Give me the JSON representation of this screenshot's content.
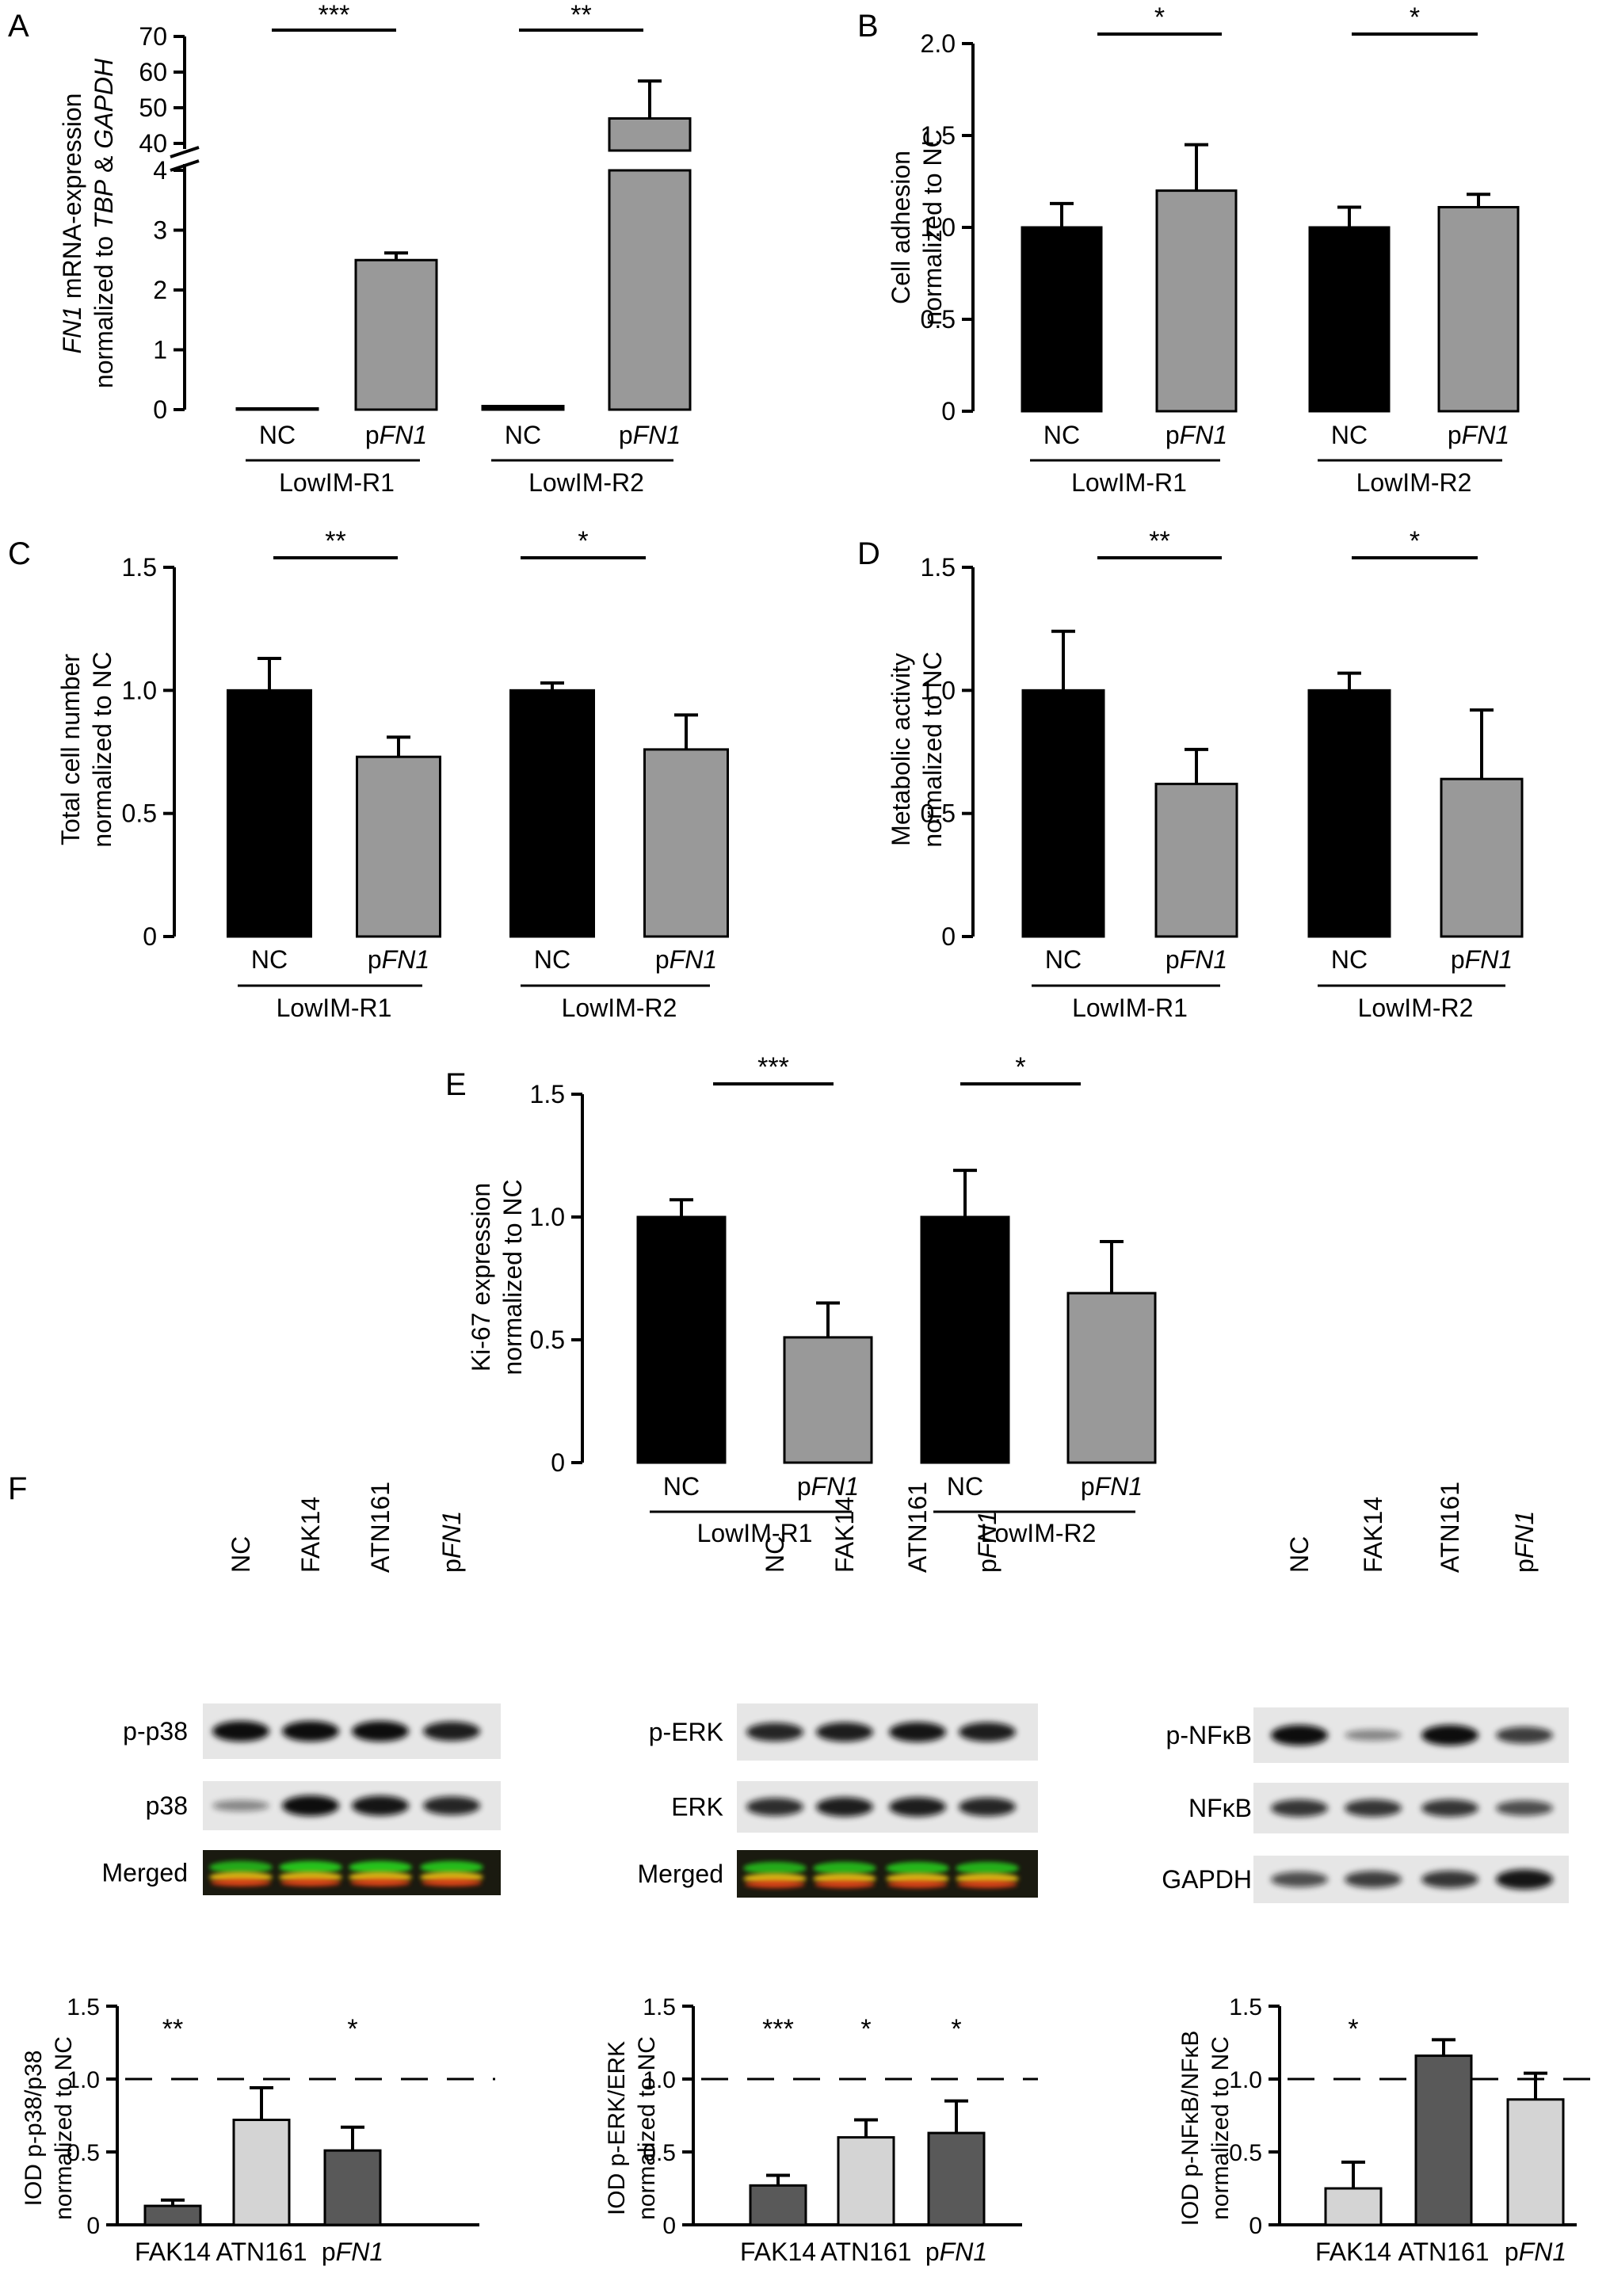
{
  "panels": {
    "A": {
      "letter": "A",
      "ylabel_parts": [
        {
          "t": "FN1",
          "i": true
        },
        {
          "t": " mRNA-expression",
          "i": false
        }
      ],
      "ylabel2_parts": [
        {
          "t": "normalized to ",
          "i": false
        },
        {
          "t": "TBP",
          "i": true
        },
        {
          "t": " & ",
          "i": false
        },
        {
          "t": "GAPDH",
          "i": true
        }
      ],
      "upper_ticks": [
        "40",
        "50",
        "60",
        "70"
      ],
      "lower_ticks": [
        "0",
        "1",
        "2",
        "3",
        "4"
      ],
      "cats": [
        {
          "t": "NC"
        },
        {
          "t": "p",
          "it": "FN1"
        },
        {
          "t": "NC"
        },
        {
          "t": "p",
          "it": "FN1"
        }
      ],
      "groups": [
        "LowIM-R1",
        "LowIM-R2"
      ],
      "sig": [
        "***",
        "**"
      ]
    },
    "B": {
      "letter": "B",
      "ylabel": "Cell adhesion",
      "ylabel2": "normalized to NC",
      "ticks": [
        "0",
        "0.5",
        "1.0",
        "1.5",
        "2.0"
      ],
      "cats": [
        {
          "t": "NC"
        },
        {
          "t": "p",
          "it": "FN1"
        },
        {
          "t": "NC"
        },
        {
          "t": "p",
          "it": "FN1"
        }
      ],
      "groups": [
        "LowIM-R1",
        "LowIM-R2"
      ],
      "sig": [
        "*",
        "*"
      ]
    },
    "C": {
      "letter": "C",
      "ylabel": "Total cell number",
      "ylabel2": "normalized to NC",
      "ticks": [
        "0",
        "0.5",
        "1.0",
        "1.5"
      ],
      "cats": [
        {
          "t": "NC"
        },
        {
          "t": "p",
          "it": "FN1"
        },
        {
          "t": "NC"
        },
        {
          "t": "p",
          "it": "FN1"
        }
      ],
      "groups": [
        "LowIM-R1",
        "LowIM-R2"
      ],
      "sig": [
        "**",
        "*"
      ]
    },
    "D": {
      "letter": "D",
      "ylabel": "Metabolic activity",
      "ylabel2": "normalized to NC",
      "ticks": [
        "0",
        "0.5",
        "1.0",
        "1.5"
      ],
      "cats": [
        {
          "t": "NC"
        },
        {
          "t": "p",
          "it": "FN1"
        },
        {
          "t": "NC"
        },
        {
          "t": "p",
          "it": "FN1"
        }
      ],
      "groups": [
        "LowIM-R1",
        "LowIM-R2"
      ],
      "sig": [
        "**",
        "*"
      ]
    },
    "E": {
      "letter": "E",
      "ylabel": "Ki-67 expression",
      "ylabel2": "normalized to NC",
      "ticks": [
        "0",
        "0.5",
        "1.0",
        "1.5"
      ],
      "cats": [
        {
          "t": "NC"
        },
        {
          "t": "p",
          "it": "FN1"
        },
        {
          "t": "NC"
        },
        {
          "t": "p",
          "it": "FN1"
        }
      ],
      "groups": [
        "LowIM-R1",
        "LowIM-R2"
      ],
      "sig": [
        "***",
        "*"
      ]
    },
    "F": {
      "letter": "F",
      "blots": [
        {
          "lanes": [
            {
              "t": "NC"
            },
            {
              "t": "FAK14"
            },
            {
              "t": "ATN161"
            },
            {
              "t": "p",
              "it": "FN1"
            }
          ],
          "rows": [
            "p-p38",
            "p38",
            "Merged"
          ]
        },
        {
          "lanes": [
            {
              "t": "NC"
            },
            {
              "t": "FAK14"
            },
            {
              "t": "ATN161"
            },
            {
              "t": "p",
              "it": "FN1"
            }
          ],
          "rows": [
            "p-ERK",
            "ERK",
            "Merged"
          ]
        },
        {
          "lanes": [
            {
              "t": "NC"
            },
            {
              "t": "FAK14"
            },
            {
              "t": "ATN161"
            },
            {
              "t": "p",
              "it": "FN1"
            }
          ],
          "rows": [
            "p-NFκB",
            "NFκB",
            "GAPDH"
          ]
        }
      ],
      "bar_charts": [
        {
          "ylabel": "IOD p-p38/p38",
          "ylabel2": "normalized to NC",
          "ticks": [
            "0",
            "0.5",
            "1.0",
            "1.5"
          ],
          "cats": [
            {
              "t": "FAK14"
            },
            {
              "t": "ATN161"
            },
            {
              "t": "p",
              "it": "FN1"
            }
          ],
          "sig": [
            "**",
            "",
            "*"
          ]
        },
        {
          "ylabel": "IOD p-ERK/ERK",
          "ylabel2": "normalized to NC",
          "ticks": [
            "0",
            "0.5",
            "1.0",
            "1.5"
          ],
          "cats": [
            {
              "t": "FAK14"
            },
            {
              "t": "ATN161"
            },
            {
              "t": "p",
              "it": "FN1"
            }
          ],
          "sig": [
            "***",
            "*",
            "*"
          ]
        },
        {
          "ylabel": "IOD p-NFκB/NFκB",
          "ylabel2": "normalized to NC",
          "ticks": [
            "0",
            "0.5",
            "1.0",
            "1.5"
          ],
          "cats": [
            {
              "t": "FAK14"
            },
            {
              "t": "ATN161"
            },
            {
              "t": "p",
              "it": "FN1"
            }
          ],
          "sig": [
            "*",
            "",
            ""
          ]
        }
      ]
    }
  },
  "colors": {
    "nc": "#000000",
    "pfn1": "#999999",
    "fak14": "#595959",
    "atn161": "#d4d4d4",
    "pfn1_f": "#7f7f7f"
  },
  "chart_data": [
    {
      "panel": "A",
      "type": "bar",
      "categories": [
        "NC",
        "pFN1",
        "NC",
        "pFN1"
      ],
      "groups": [
        "LowIM-R1",
        "LowIM-R2"
      ],
      "values": [
        0.02,
        2.5,
        0.06,
        47
      ],
      "errors": [
        0,
        0.12,
        0,
        10.5
      ],
      "axis_break": [
        4,
        40
      ],
      "ylim": [
        0,
        70
      ],
      "significance": [
        "***",
        "**"
      ]
    },
    {
      "panel": "B",
      "type": "bar",
      "categories": [
        "NC",
        "pFN1",
        "NC",
        "pFN1"
      ],
      "groups": [
        "LowIM-R1",
        "LowIM-R2"
      ],
      "values": [
        1.0,
        1.2,
        1.0,
        1.11
      ],
      "errors": [
        0.13,
        0.25,
        0.11,
        0.07
      ],
      "ylim": [
        0,
        2.0
      ],
      "significance": [
        "*",
        "*"
      ]
    },
    {
      "panel": "C",
      "type": "bar",
      "categories": [
        "NC",
        "pFN1",
        "NC",
        "pFN1"
      ],
      "groups": [
        "LowIM-R1",
        "LowIM-R2"
      ],
      "values": [
        1.0,
        0.73,
        1.0,
        0.76
      ],
      "errors": [
        0.13,
        0.08,
        0.03,
        0.14
      ],
      "ylim": [
        0,
        1.5
      ],
      "significance": [
        "**",
        "*"
      ]
    },
    {
      "panel": "D",
      "type": "bar",
      "categories": [
        "NC",
        "pFN1",
        "NC",
        "pFN1"
      ],
      "groups": [
        "LowIM-R1",
        "LowIM-R2"
      ],
      "values": [
        1.0,
        0.62,
        1.0,
        0.64
      ],
      "errors": [
        0.24,
        0.14,
        0.07,
        0.28
      ],
      "ylim": [
        0,
        1.5
      ],
      "significance": [
        "**",
        "*"
      ]
    },
    {
      "panel": "E",
      "type": "bar",
      "categories": [
        "NC",
        "pFN1",
        "NC",
        "pFN1"
      ],
      "groups": [
        "LowIM-R1",
        "LowIM-R2"
      ],
      "values": [
        1.0,
        0.51,
        1.0,
        0.69
      ],
      "errors": [
        0.07,
        0.14,
        0.19,
        0.21
      ],
      "ylim": [
        0,
        1.5
      ],
      "significance": [
        "***",
        "*"
      ]
    },
    {
      "panel": "F1",
      "type": "bar",
      "categories": [
        "FAK14",
        "ATN161",
        "pFN1"
      ],
      "values": [
        0.13,
        0.72,
        0.51
      ],
      "errors": [
        0.04,
        0.22,
        0.16
      ],
      "ylim": [
        0,
        1.5
      ],
      "reference_line": 1.0,
      "significance": [
        "**",
        "",
        "*"
      ]
    },
    {
      "panel": "F2",
      "type": "bar",
      "categories": [
        "FAK14",
        "ATN161",
        "pFN1"
      ],
      "values": [
        0.27,
        0.6,
        0.63
      ],
      "errors": [
        0.07,
        0.12,
        0.22
      ],
      "ylim": [
        0,
        1.5
      ],
      "reference_line": 1.0,
      "significance": [
        "***",
        "*",
        "*"
      ]
    },
    {
      "panel": "F3",
      "type": "bar",
      "categories": [
        "FAK14",
        "ATN161",
        "pFN1"
      ],
      "values": [
        0.25,
        1.16,
        0.86
      ],
      "errors": [
        0.18,
        0.11,
        0.18
      ],
      "ylim": [
        0,
        1.5
      ],
      "reference_line": 1.0,
      "significance": [
        "*",
        "",
        ""
      ]
    }
  ]
}
